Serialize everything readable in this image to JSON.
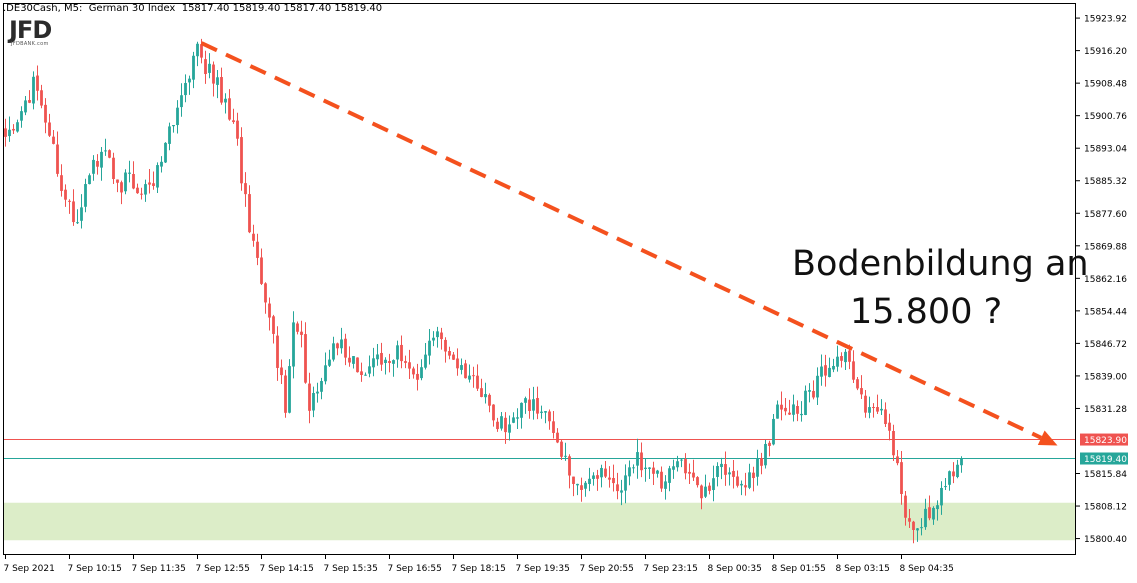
{
  "header": {
    "symbol": ".DE30Cash",
    "timeframe": "M5",
    "instrument": "German 30 Index",
    "ohlc": "15817.40 15819.40 15817.40 15819.40"
  },
  "logo": {
    "main": "JFD",
    "sub": "JFDBANK.com"
  },
  "annotation": {
    "line1": "Bodenbildung an",
    "line2": "15.800 ?"
  },
  "colors": {
    "bull": "#26a69a",
    "bear": "#ef5350",
    "trend_line": "#f4511e",
    "support_zone": "#dcedc8",
    "resistance_line": "#ef5350",
    "current_line": "#26a69a",
    "grid": "#000000"
  },
  "chart_data": {
    "type": "candlestick",
    "title": ".DE30Cash, M5: German 30 Index",
    "ylim": [
      15796.5,
      15927.5
    ],
    "y_ticks": [
      "15923.92",
      "15916.20",
      "15908.48",
      "15900.76",
      "15893.04",
      "15885.32",
      "15877.60",
      "15869.88",
      "15862.16",
      "15854.44",
      "15846.72",
      "15839.00",
      "15831.28",
      "15823.90",
      "15815.84",
      "15808.12",
      "15800.40"
    ],
    "x_ticks": [
      "7 Sep 2021",
      "7 Sep 10:15",
      "7 Sep 11:35",
      "7 Sep 12:55",
      "7 Sep 14:15",
      "7 Sep 15:35",
      "7 Sep 16:55",
      "7 Sep 18:15",
      "7 Sep 19:35",
      "7 Sep 20:55",
      "7 Sep 23:15",
      "8 Sep 00:35",
      "8 Sep 01:55",
      "8 Sep 03:15",
      "8 Sep 04:35"
    ],
    "price_labels": {
      "resistance": {
        "value": 15823.9,
        "label": "15823.90"
      },
      "current": {
        "value": 15819.4,
        "label": "15819.40"
      }
    },
    "support_zone": [
      15800.0,
      15808.9
    ],
    "trendline": {
      "from_bar": 49,
      "from_price": 15918.0,
      "to_bar": 263,
      "to_price": 15822.5
    },
    "bars": 240,
    "anchor_path": [
      [
        0,
        15898
      ],
      [
        3,
        15895
      ],
      [
        8,
        15908
      ],
      [
        12,
        15895
      ],
      [
        18,
        15875
      ],
      [
        25,
        15893
      ],
      [
        30,
        15885
      ],
      [
        38,
        15884
      ],
      [
        44,
        15902
      ],
      [
        49,
        15916
      ],
      [
        54,
        15908
      ],
      [
        58,
        15900
      ],
      [
        61,
        15880
      ],
      [
        64,
        15865
      ],
      [
        68,
        15848
      ],
      [
        71,
        15832
      ],
      [
        73,
        15852
      ],
      [
        75,
        15848
      ],
      [
        77,
        15830
      ],
      [
        81,
        15840
      ],
      [
        84,
        15848
      ],
      [
        86,
        15845
      ],
      [
        90,
        15838
      ],
      [
        95,
        15843
      ],
      [
        100,
        15845
      ],
      [
        104,
        15840
      ],
      [
        109,
        15850
      ],
      [
        114,
        15842
      ],
      [
        118,
        15837
      ],
      [
        122,
        15832
      ],
      [
        125,
        15827
      ],
      [
        129,
        15830
      ],
      [
        133,
        15833
      ],
      [
        136,
        15830
      ],
      [
        139,
        15825
      ],
      [
        142,
        15815
      ],
      [
        146,
        15813
      ],
      [
        150,
        15816
      ],
      [
        155,
        15813
      ],
      [
        159,
        15820
      ],
      [
        163,
        15816
      ],
      [
        166,
        15814
      ],
      [
        170,
        15818
      ],
      [
        175,
        15812
      ],
      [
        180,
        15816
      ],
      [
        184,
        15812
      ],
      [
        188,
        15815
      ],
      [
        191,
        15821
      ],
      [
        194,
        15830
      ],
      [
        199,
        15831
      ],
      [
        205,
        15839
      ],
      [
        210,
        15844
      ],
      [
        213,
        15840
      ],
      [
        216,
        15832
      ],
      [
        219,
        15831
      ],
      [
        224,
        15820
      ],
      [
        226,
        15806
      ],
      [
        228,
        15803
      ],
      [
        231,
        15806
      ],
      [
        235,
        15811
      ],
      [
        239,
        15819.4
      ]
    ]
  }
}
